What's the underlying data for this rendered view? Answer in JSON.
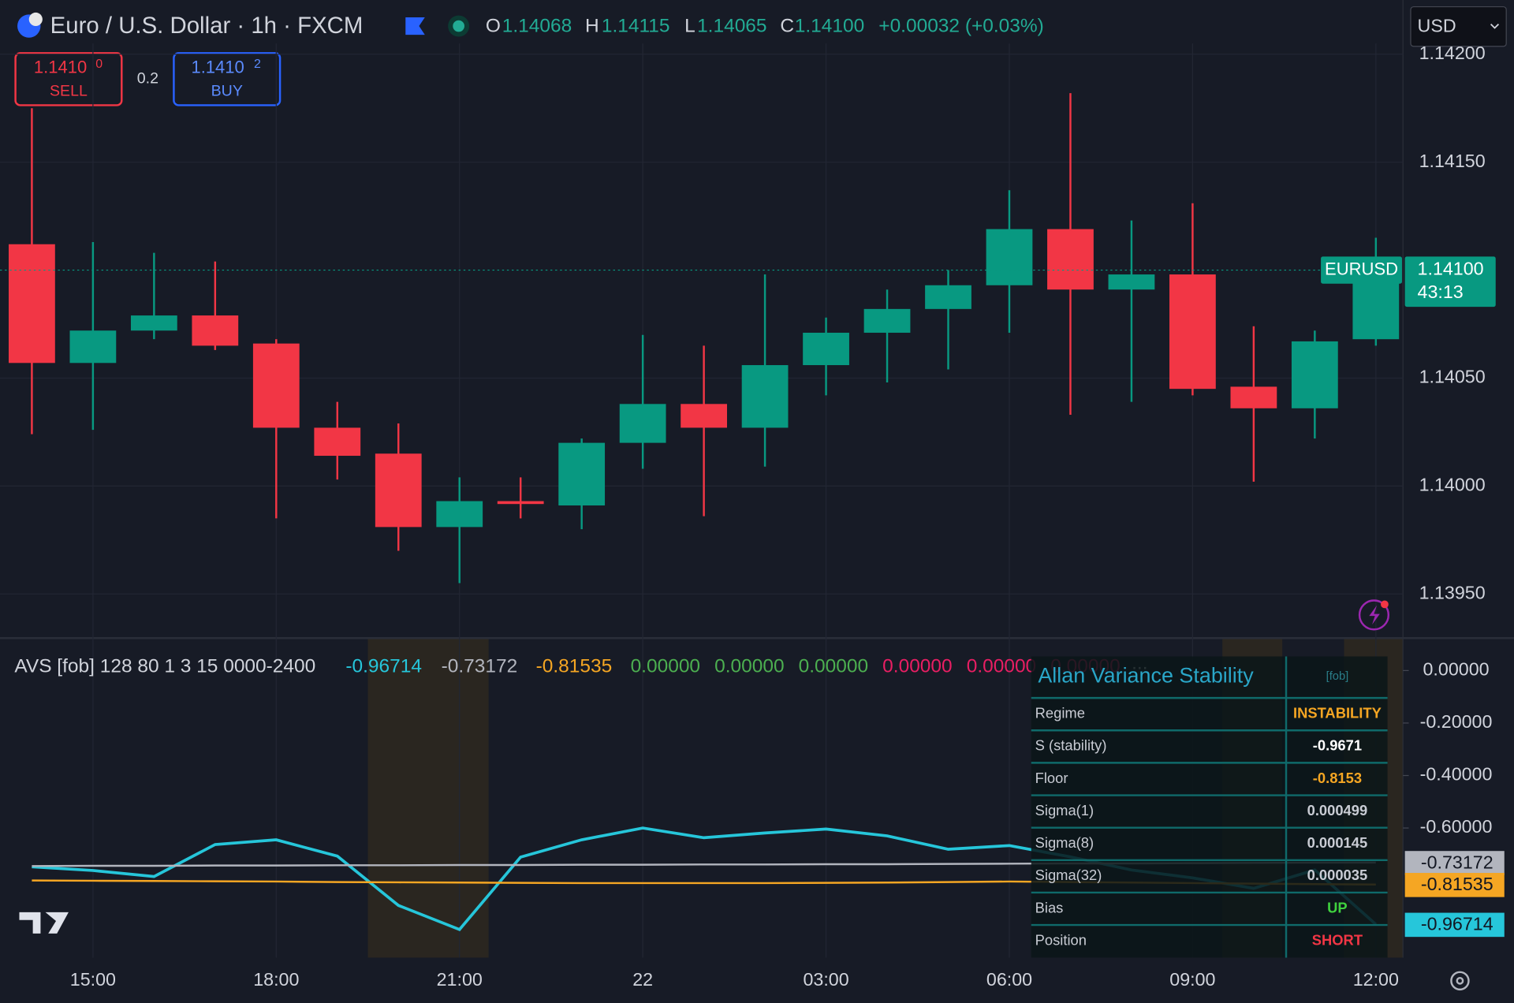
{
  "header": {
    "symbol": "Euro / U.S. Dollar · 1h · FXCM",
    "ohlc": [
      {
        "label": "O",
        "value": "1.14068"
      },
      {
        "label": "H",
        "value": "1.14115"
      },
      {
        "label": "L",
        "value": "1.14065"
      },
      {
        "label": "C",
        "value": "1.14100"
      }
    ],
    "change": "+0.00032 (+0.03%)",
    "currency": "USD",
    "sell": {
      "price": "1.1410",
      "pip": "0",
      "label": "SELL"
    },
    "spread": "0.2",
    "buy": {
      "price": "1.1410",
      "pip": "2",
      "label": "BUY"
    }
  },
  "chart_data": [
    {
      "type": "candlestick",
      "categories": [
        null,
        "15:00",
        null,
        null,
        "18:00",
        null,
        null,
        "21:00",
        null,
        null,
        "22",
        null,
        null,
        "03:00",
        null,
        null,
        "06:00",
        null,
        null,
        "09:00",
        null,
        null,
        "12:00"
      ],
      "open": [
        1.14112,
        1.14057,
        1.14072,
        1.14079,
        1.14066,
        1.14027,
        1.14015,
        1.13981,
        1.13993,
        1.13991,
        1.1402,
        1.14038,
        1.14027,
        1.14056,
        1.14071,
        1.14082,
        1.14093,
        1.14119,
        1.14091,
        1.14098,
        1.14046,
        1.14036,
        1.14068
      ],
      "high": [
        1.14175,
        1.14113,
        1.14108,
        1.14104,
        1.14068,
        1.14039,
        1.14029,
        1.14004,
        1.14004,
        1.14022,
        1.1407,
        1.14065,
        1.14098,
        1.14078,
        1.14091,
        1.141,
        1.14137,
        1.14182,
        1.14123,
        1.14131,
        1.14074,
        1.14072,
        1.14115
      ],
      "low": [
        1.14024,
        1.14026,
        1.14068,
        1.14063,
        1.13985,
        1.14003,
        1.1397,
        1.13955,
        1.13985,
        1.1398,
        1.14008,
        1.13986,
        1.14009,
        1.14042,
        1.14048,
        1.14054,
        1.14071,
        1.14033,
        1.14039,
        1.14042,
        1.14002,
        1.14022,
        1.14065
      ],
      "close": [
        1.14057,
        1.14072,
        1.14079,
        1.14065,
        1.14027,
        1.14014,
        1.13981,
        1.13993,
        1.13992,
        1.1402,
        1.14038,
        1.14027,
        1.14056,
        1.14071,
        1.14082,
        1.14093,
        1.14119,
        1.14091,
        1.14098,
        1.14045,
        1.14036,
        1.14067,
        1.141
      ],
      "up_color": "#089981",
      "down_color": "#f23645",
      "ylim": [
        1.1393,
        1.14205
      ],
      "yticks": [
        {
          "value": 1.1395,
          "label": "1.13950"
        },
        {
          "value": 1.14,
          "label": "1.14000"
        },
        {
          "value": 1.1405,
          "label": "1.14050"
        },
        {
          "value": 1.1415,
          "label": "1.14150"
        },
        {
          "value": 1.142,
          "label": "1.14200"
        }
      ],
      "grid": true,
      "last_symbol": "EURUSD",
      "last_value_label": "1.14100",
      "countdown": "43:13"
    },
    {
      "type": "line",
      "title": "AVS [fob] 128 80 1 3 15 0000-2400",
      "series": [
        {
          "color": "#26c6da",
          "last_label": "-0.96714",
          "values": [
            -0.748,
            -0.762,
            -0.785,
            -0.663,
            -0.645,
            -0.707,
            -0.895,
            -0.987,
            -0.711,
            -0.645,
            -0.6,
            -0.637,
            -0.619,
            -0.604,
            -0.63,
            -0.681,
            -0.667,
            -0.71,
            -0.76,
            -0.79,
            -0.83,
            -0.76,
            -0.96714
          ]
        },
        {
          "color": "#b2b5be",
          "last_label": "-0.73172",
          "values": [
            -0.745,
            -0.744,
            -0.744,
            -0.743,
            -0.743,
            -0.742,
            -0.742,
            -0.741,
            -0.741,
            -0.74,
            -0.74,
            -0.739,
            -0.739,
            -0.738,
            -0.738,
            -0.737,
            -0.736,
            -0.735,
            -0.735,
            -0.734,
            -0.733,
            -0.732,
            -0.73172
          ]
        },
        {
          "color": "#f5a623",
          "last_label": "-0.81535",
          "values": [
            -0.8,
            -0.801,
            -0.802,
            -0.803,
            -0.804,
            -0.806,
            -0.807,
            -0.808,
            -0.809,
            -0.81,
            -0.81,
            -0.81,
            -0.81,
            -0.809,
            -0.808,
            -0.806,
            -0.804,
            -0.806,
            -0.808,
            -0.81,
            -0.812,
            -0.814,
            -0.81535
          ]
        }
      ],
      "legend_extra": [
        {
          "label": "0.00000",
          "color": "#4caf50"
        },
        {
          "label": "0.00000",
          "color": "#4caf50"
        },
        {
          "label": "0.00000",
          "color": "#4caf50"
        },
        {
          "label": "0.00000",
          "color": "#e91e63"
        },
        {
          "label": "0.00000",
          "color": "#e91e63"
        },
        {
          "label": "0.00000",
          "color": "#e91e63"
        }
      ],
      "more": "...",
      "ylim": [
        -1.094,
        0.12
      ],
      "yticks": [
        {
          "value": 0,
          "label": "0.00000"
        },
        {
          "value": -0.2,
          "label": "-0.20000"
        },
        {
          "value": -0.4,
          "label": "-0.40000"
        },
        {
          "value": -0.6,
          "label": "-0.60000"
        }
      ]
    }
  ],
  "table": {
    "title": "Allan Variance Stability",
    "tag": "[fob]",
    "rows": [
      {
        "label": "Regime",
        "value": "INSTABILITY",
        "color": "#f5a623"
      },
      {
        "label": "S (stability)",
        "value": "-0.9671",
        "color": "#ffffff"
      },
      {
        "label": "Floor",
        "value": "-0.8153",
        "color": "#f5a623"
      },
      {
        "label": "Sigma(1)",
        "value": "0.000499",
        "color": "#c9ccd4"
      },
      {
        "label": "Sigma(8)",
        "value": "0.000145",
        "color": "#c9ccd4"
      },
      {
        "label": "Sigma(32)",
        "value": "0.000035",
        "color": "#c9ccd4"
      },
      {
        "label": "Bias",
        "value": "UP",
        "color": "#3fd13f"
      },
      {
        "label": "Position",
        "value": "SHORT",
        "color": "#f23645"
      }
    ]
  }
}
